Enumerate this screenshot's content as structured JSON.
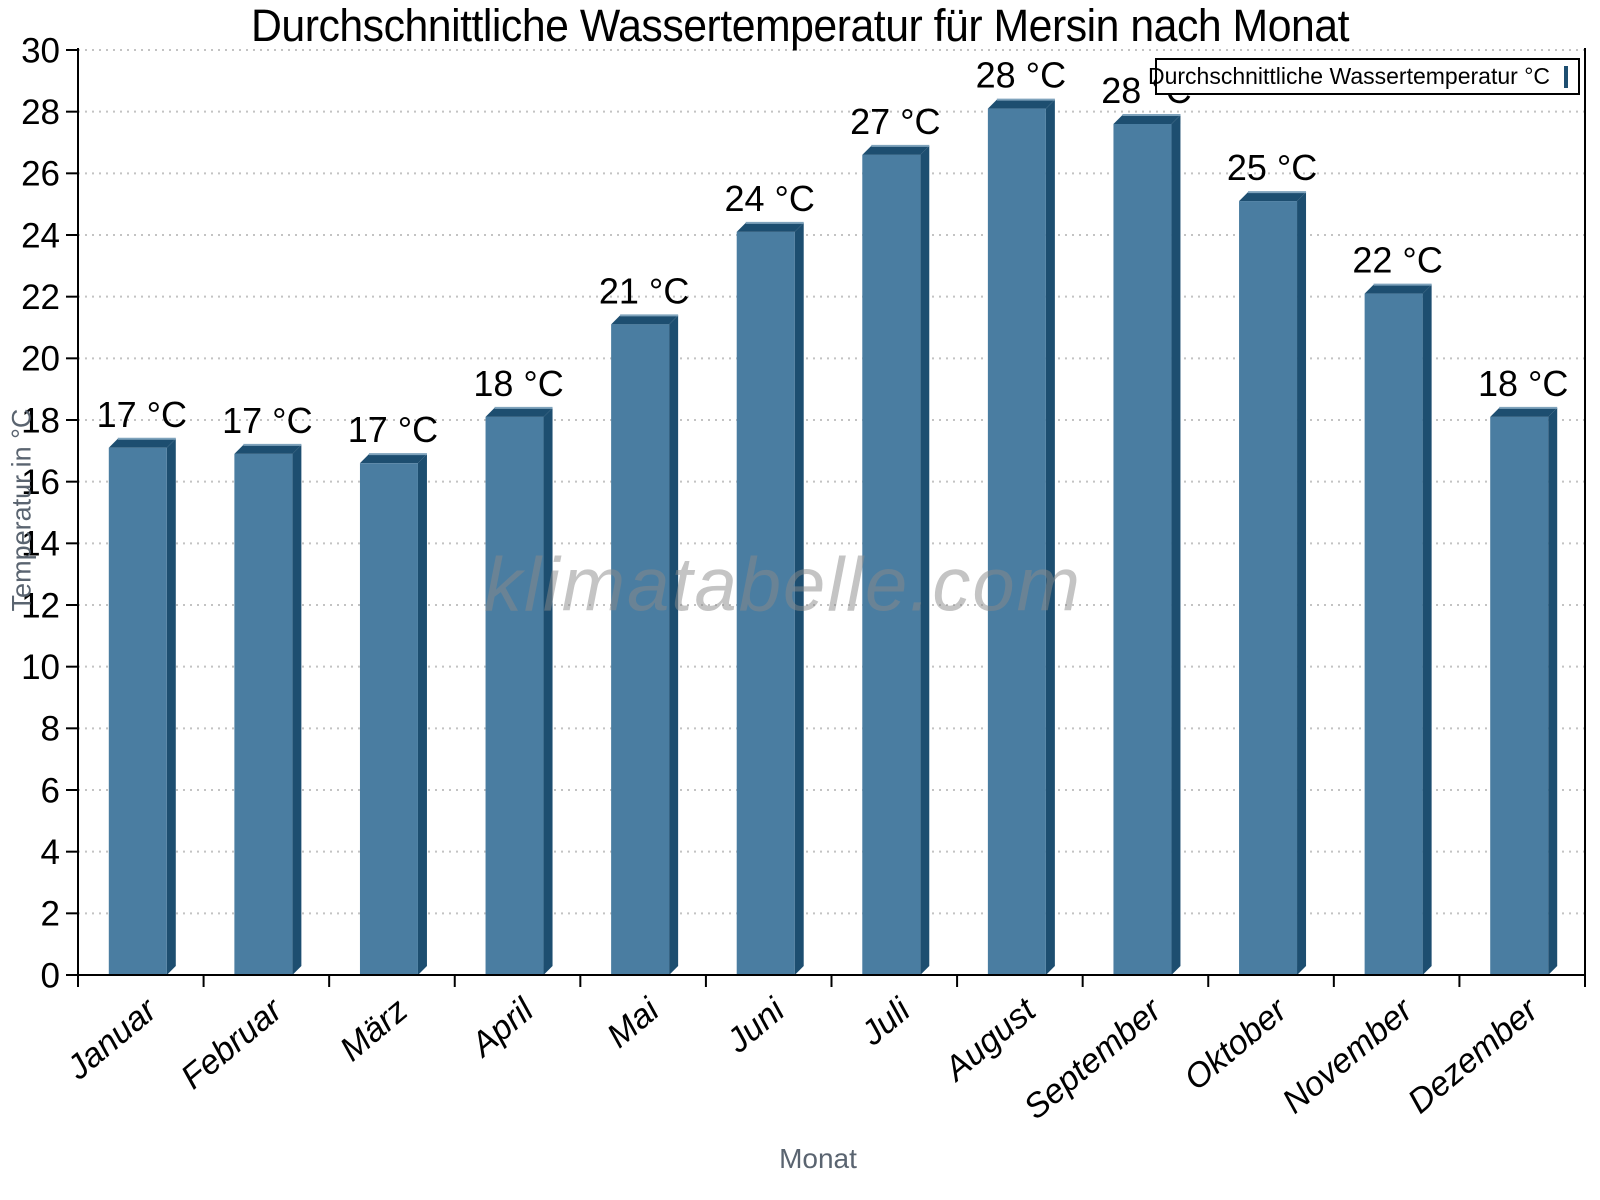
{
  "chart_data": {
    "type": "bar",
    "title": "Durchschnittliche Wassertemperatur für Mersin nach Monat",
    "categories": [
      "Januar",
      "Februar",
      "März",
      "April",
      "Mai",
      "Juni",
      "Juli",
      "August",
      "September",
      "Oktober",
      "November",
      "Dezember"
    ],
    "values": [
      17.1,
      16.9,
      16.6,
      18.1,
      21.1,
      24.1,
      26.6,
      28.1,
      27.6,
      25.1,
      22.1,
      18.1
    ],
    "bar_labels": [
      "17 °C",
      "17 °C",
      "17 °C",
      "18 °C",
      "21 °C",
      "24 °C",
      "27 °C",
      "28 °C",
      "28 °C",
      "25 °C",
      "22 °C",
      "18 °C"
    ],
    "xlabel": "Monat",
    "ylabel": "Temperatur in °C",
    "ylim": [
      0,
      30
    ],
    "y_tick_step": 2,
    "grid": "dotted-horizontal",
    "legend": {
      "label": "Durchschnittliche Wassertemperatur °C",
      "position": "top-right"
    },
    "watermark": "klimatabelle.com",
    "colors": {
      "bar_face": "#4A7DA1",
      "bar_side": "#1D4E70",
      "bar_top_highlight": "#7FA3BC",
      "grid": "#C3C3C3",
      "axis": "#000000",
      "tick_label": "#000000",
      "axis_title": "#5A6470"
    }
  }
}
